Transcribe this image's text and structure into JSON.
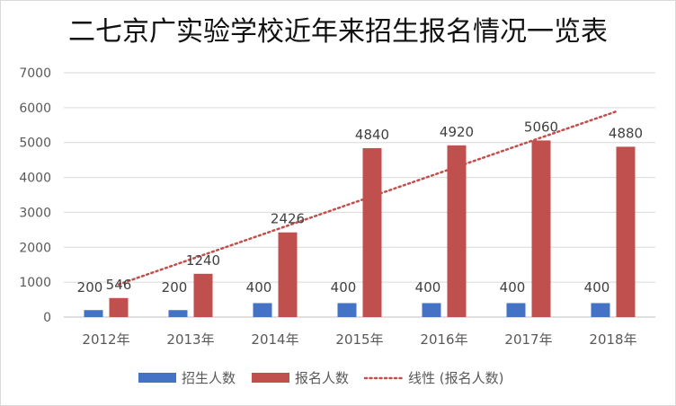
{
  "chart_data": {
    "type": "bar",
    "title": "二七京广实验学校近年来招生报名情况一览表",
    "categories": [
      "2012年",
      "2013年",
      "2014年",
      "2015年",
      "2016年",
      "2017年",
      "2018年"
    ],
    "series": [
      {
        "name": "招生人数",
        "values": [
          200,
          200,
          400,
          400,
          400,
          400,
          400
        ],
        "color": "#4472c4"
      },
      {
        "name": "报名人数",
        "values": [
          546,
          1240,
          2426,
          4840,
          4920,
          5060,
          4880
        ],
        "color": "#c0504d"
      }
    ],
    "trendline": {
      "name": "线性 (报名人数)",
      "series": "报名人数",
      "type": "linear",
      "style": "dotted",
      "color": "#c0504d"
    },
    "ylim": [
      0,
      7000
    ],
    "yticks": [
      0,
      1000,
      2000,
      3000,
      4000,
      5000,
      6000,
      7000
    ],
    "grid": true,
    "data_labels": true,
    "legend_position": "bottom"
  }
}
